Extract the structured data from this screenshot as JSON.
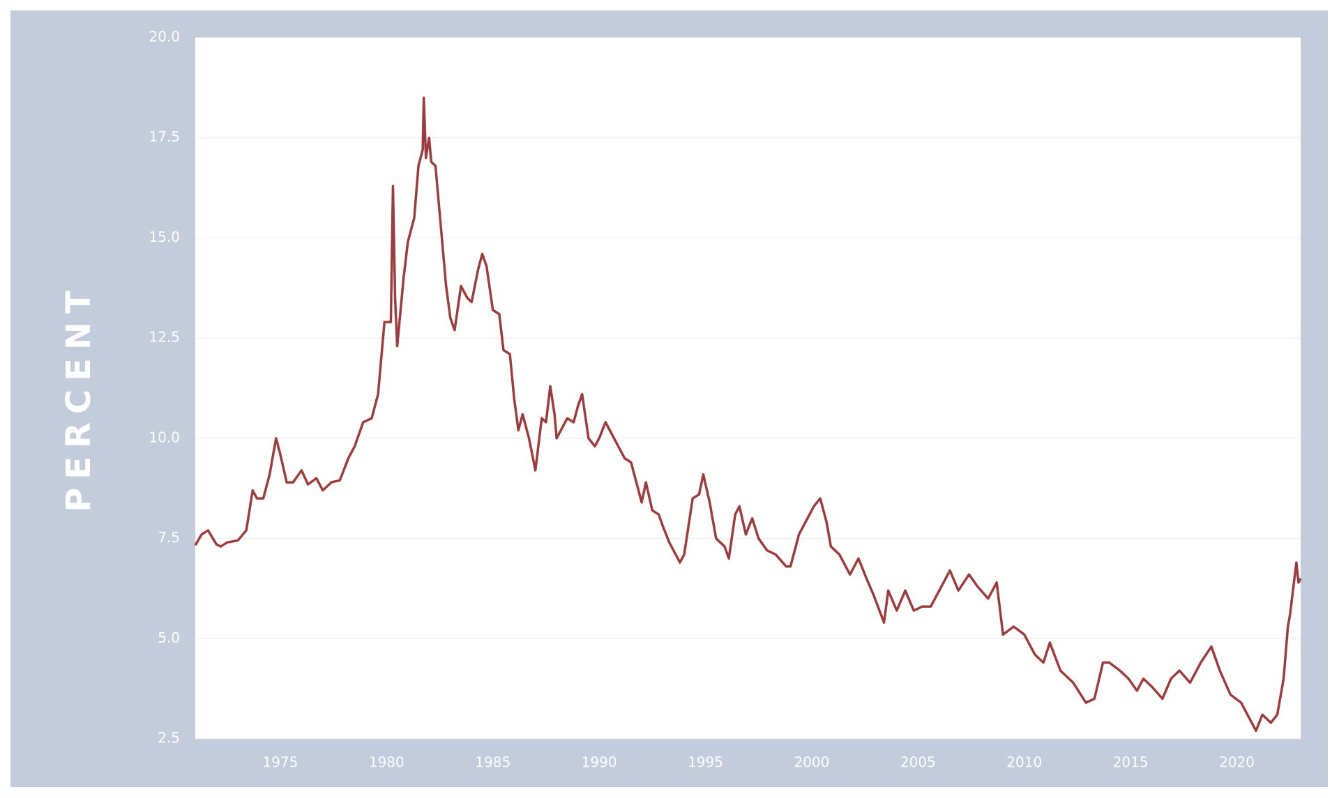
{
  "chart_data": {
    "type": "line",
    "y_label": "PERCENT",
    "x": [
      1971.0,
      1971.3,
      1971.6,
      1972.0,
      1972.2,
      1972.5,
      1973.0,
      1973.4,
      1973.7,
      1973.9,
      1974.2,
      1974.5,
      1974.8,
      1975.0,
      1975.3,
      1975.6,
      1976.0,
      1976.3,
      1976.7,
      1977.0,
      1977.4,
      1977.8,
      1978.2,
      1978.5,
      1978.9,
      1979.3,
      1979.6,
      1979.9,
      1980.2,
      1980.3,
      1980.4,
      1980.5,
      1980.8,
      1981.0,
      1981.3,
      1981.5,
      1981.7,
      1981.75,
      1981.85,
      1982.0,
      1982.1,
      1982.3,
      1982.6,
      1982.8,
      1983.0,
      1983.2,
      1983.5,
      1983.8,
      1984.0,
      1984.3,
      1984.5,
      1984.7,
      1985.0,
      1985.3,
      1985.5,
      1985.8,
      1986.0,
      1986.2,
      1986.4,
      1986.7,
      1987.0,
      1987.3,
      1987.5,
      1987.7,
      1987.9,
      1988.0,
      1988.5,
      1988.8,
      1989.0,
      1989.2,
      1989.5,
      1989.8,
      1990.0,
      1990.3,
      1990.6,
      1990.9,
      1991.2,
      1991.5,
      1991.8,
      1992.0,
      1992.2,
      1992.5,
      1992.8,
      1993.0,
      1993.3,
      1993.8,
      1994.0,
      1994.4,
      1994.7,
      1994.9,
      1995.2,
      1995.5,
      1995.9,
      1996.1,
      1996.4,
      1996.6,
      1996.9,
      1997.2,
      1997.5,
      1997.9,
      1998.3,
      1998.8,
      1999.0,
      1999.4,
      1999.7,
      2000.1,
      2000.4,
      2000.7,
      2000.9,
      2001.3,
      2001.8,
      2002.2,
      2002.5,
      2002.9,
      2003.4,
      2003.6,
      2004.0,
      2004.4,
      2004.8,
      2005.2,
      2005.6,
      2006.0,
      2006.5,
      2006.9,
      2007.4,
      2007.8,
      2008.3,
      2008.7,
      2009.0,
      2009.5,
      2010.0,
      2010.5,
      2010.9,
      2011.2,
      2011.7,
      2012.3,
      2012.9,
      2013.3,
      2013.7,
      2014.0,
      2014.5,
      2014.9,
      2015.3,
      2015.6,
      2016.0,
      2016.5,
      2016.9,
      2017.3,
      2017.8,
      2018.3,
      2018.8,
      2019.2,
      2019.7,
      2020.2,
      2020.6,
      2020.9,
      2021.2,
      2021.6,
      2021.9,
      2022.2,
      2022.4,
      2022.5,
      2022.8,
      2022.9,
      2023.0
    ],
    "series": [
      {
        "color": "#9e3b3b",
        "values": [
          7.33,
          7.6,
          7.7,
          7.35,
          7.3,
          7.4,
          7.45,
          7.7,
          8.7,
          8.5,
          8.5,
          9.1,
          10.0,
          9.6,
          8.9,
          8.9,
          9.2,
          8.85,
          9.0,
          8.7,
          8.9,
          8.95,
          9.5,
          9.8,
          10.4,
          10.5,
          11.1,
          12.9,
          12.9,
          16.3,
          13.5,
          12.3,
          14.0,
          14.9,
          15.5,
          16.8,
          17.2,
          18.5,
          17.0,
          17.5,
          16.9,
          16.8,
          15.0,
          13.8,
          13.0,
          12.7,
          13.8,
          13.5,
          13.4,
          14.2,
          14.6,
          14.3,
          13.2,
          13.1,
          12.2,
          12.1,
          11.0,
          10.2,
          10.6,
          10.0,
          9.2,
          10.5,
          10.4,
          11.3,
          10.6,
          10.0,
          10.5,
          10.4,
          10.8,
          11.1,
          10.0,
          9.8,
          10.0,
          10.4,
          10.1,
          9.8,
          9.5,
          9.4,
          8.8,
          8.4,
          8.9,
          8.2,
          8.1,
          7.8,
          7.4,
          6.9,
          7.1,
          8.5,
          8.6,
          9.1,
          8.4,
          7.5,
          7.3,
          7.0,
          8.1,
          8.3,
          7.6,
          8.0,
          7.5,
          7.2,
          7.1,
          6.8,
          6.8,
          7.6,
          7.9,
          8.3,
          8.5,
          7.9,
          7.3,
          7.1,
          6.6,
          7.0,
          6.6,
          6.1,
          5.4,
          6.2,
          5.7,
          6.2,
          5.7,
          5.8,
          5.8,
          6.2,
          6.7,
          6.2,
          6.6,
          6.3,
          6.0,
          6.4,
          5.1,
          5.3,
          5.1,
          4.6,
          4.4,
          4.9,
          4.2,
          3.9,
          3.4,
          3.5,
          4.4,
          4.4,
          4.2,
          4.0,
          3.7,
          4.0,
          3.8,
          3.5,
          4.0,
          4.2,
          3.9,
          4.4,
          4.8,
          4.2,
          3.6,
          3.4,
          3.0,
          2.7,
          3.1,
          2.9,
          3.1,
          4.0,
          5.3,
          5.6,
          6.9,
          6.4,
          6.5
        ]
      }
    ],
    "xlim": [
      1971,
      2023
    ],
    "xticks": [
      1975,
      1980,
      1985,
      1990,
      1995,
      2000,
      2005,
      2010,
      2015,
      2020
    ],
    "ylim": [
      2.5,
      20
    ],
    "yticks": [
      2.5,
      {
        "value": 5,
        "label": "5.0"
      },
      7.5,
      {
        "value": 10,
        "label": "10.0"
      },
      12.5,
      {
        "value": 15,
        "label": "15.0"
      },
      17.5,
      {
        "value": 20,
        "label": "20.0"
      }
    ],
    "grid": true
  }
}
